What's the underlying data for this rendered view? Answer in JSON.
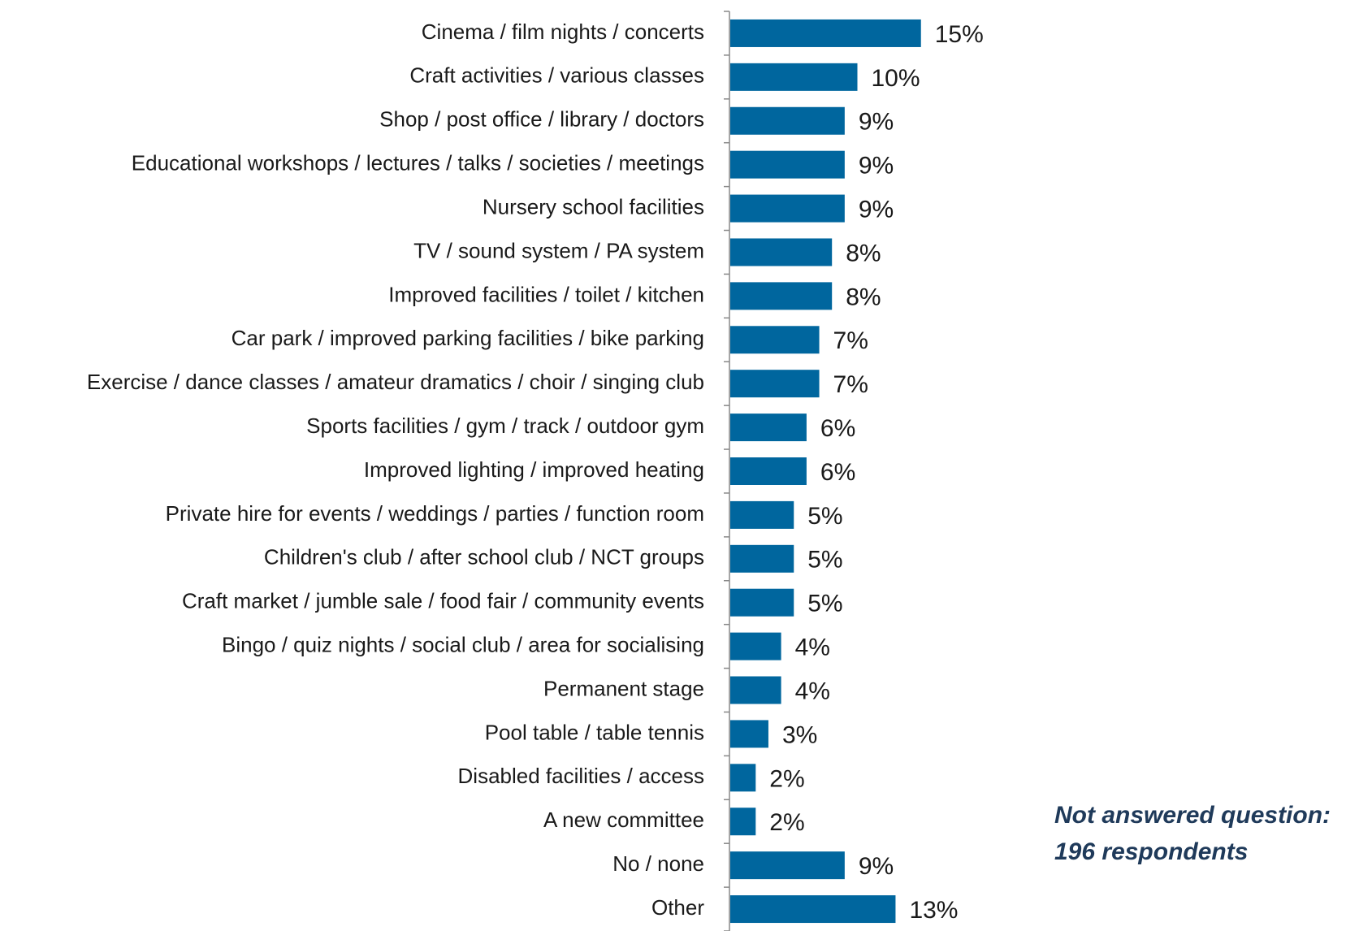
{
  "chart_data": {
    "type": "bar",
    "orientation": "horizontal",
    "categories": [
      "Cinema / film nights / concerts",
      "Craft activities / various classes",
      "Shop / post office / library / doctors",
      "Educational workshops / lectures / talks / societies / meetings",
      "Nursery school facilities",
      "TV / sound system / PA system",
      "Improved facilities / toilet / kitchen",
      "Car park / improved parking facilities / bike parking",
      "Exercise / dance classes / amateur dramatics / choir / singing club",
      "Sports facilities / gym / track / outdoor gym",
      "Improved lighting / improved heating",
      "Private hire for events / weddings / parties / function room",
      "Children's club / after school club / NCT groups",
      "Craft market / jumble sale  / food fair / community events",
      "Bingo / quiz nights / social club / area for socialising",
      "Permanent stage",
      "Pool table / table tennis",
      "Disabled facilities / access",
      "A new committee",
      "No / none",
      "Other"
    ],
    "values": [
      15,
      10,
      9,
      9,
      9,
      8,
      8,
      7,
      7,
      6,
      6,
      5,
      5,
      5,
      4,
      4,
      3,
      2,
      2,
      9,
      13
    ],
    "value_labels": [
      "15%",
      "10%",
      "9%",
      "9%",
      "9%",
      "8%",
      "8%",
      "7%",
      "7%",
      "6%",
      "6%",
      "5%",
      "5%",
      "5%",
      "4%",
      "4%",
      "3%",
      "2%",
      "2%",
      "9%",
      "13%"
    ],
    "color": "#00669e",
    "annotation": [
      "Not answered question:",
      "196 respondents"
    ]
  }
}
